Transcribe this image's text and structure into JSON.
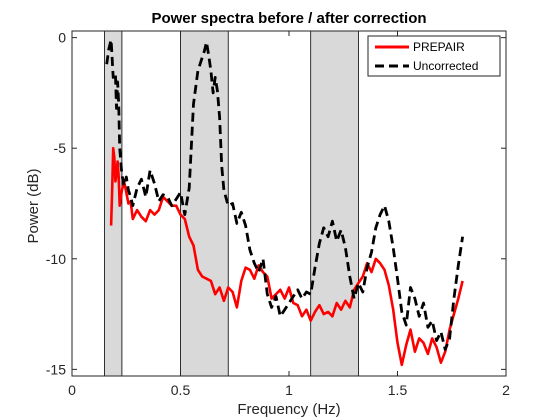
{
  "chart_data": {
    "type": "line",
    "title": "Power spectra before / after correction",
    "xlabel": "Frequency (Hz)",
    "ylabel": "Power (dB)",
    "xlim": [
      0,
      2
    ],
    "ylim": [
      -15.3,
      0.3
    ],
    "xticks": [
      0,
      0.5,
      1,
      1.5,
      2
    ],
    "xtick_labels": [
      "0",
      "0.5",
      "1",
      "1.5",
      "2"
    ],
    "yticks": [
      0,
      -5,
      -10,
      -15
    ],
    "ytick_labels": [
      "0",
      "-5",
      "-10",
      "-15"
    ],
    "grid": false,
    "legend_position": "top-right",
    "shaded_bands": [
      [
        0.15,
        0.23
      ],
      [
        0.5,
        0.72
      ],
      [
        1.1,
        1.32
      ]
    ],
    "band_color": "#d9d9d9",
    "series": [
      {
        "name": "PREPAIR",
        "color": "#ff0000",
        "style": "solid",
        "x": [
          0.18,
          0.185,
          0.19,
          0.195,
          0.2,
          0.205,
          0.21,
          0.215,
          0.22,
          0.23,
          0.24,
          0.25,
          0.26,
          0.27,
          0.28,
          0.3,
          0.32,
          0.34,
          0.36,
          0.38,
          0.4,
          0.42,
          0.44,
          0.46,
          0.48,
          0.5,
          0.52,
          0.54,
          0.56,
          0.58,
          0.6,
          0.62,
          0.64,
          0.66,
          0.68,
          0.7,
          0.72,
          0.74,
          0.76,
          0.78,
          0.8,
          0.82,
          0.84,
          0.86,
          0.88,
          0.9,
          0.92,
          0.94,
          0.96,
          0.98,
          1.0,
          1.02,
          1.04,
          1.06,
          1.08,
          1.1,
          1.12,
          1.14,
          1.16,
          1.18,
          1.2,
          1.22,
          1.24,
          1.26,
          1.28,
          1.3,
          1.32,
          1.34,
          1.36,
          1.38,
          1.4,
          1.42,
          1.44,
          1.46,
          1.48,
          1.5,
          1.52,
          1.54,
          1.56,
          1.58,
          1.6,
          1.62,
          1.64,
          1.66,
          1.68,
          1.7,
          1.72,
          1.74,
          1.76,
          1.78,
          1.8
        ],
        "values": [
          -8.5,
          -7.0,
          -5.0,
          -5.4,
          -6.5,
          -6.2,
          -5.6,
          -6.3,
          -7.6,
          -6.9,
          -6.5,
          -7.0,
          -7.5,
          -7.4,
          -8.2,
          -7.8,
          -8.1,
          -8.3,
          -7.8,
          -8.0,
          -7.8,
          -7.2,
          -7.4,
          -7.6,
          -7.6,
          -8.0,
          -8.2,
          -9.0,
          -9.4,
          -10.5,
          -10.8,
          -10.9,
          -11.0,
          -11.6,
          -11.3,
          -11.9,
          -11.3,
          -11.5,
          -12.2,
          -11.0,
          -10.4,
          -10.5,
          -10.9,
          -10.3,
          -10.6,
          -10.8,
          -11.8,
          -11.6,
          -11.4,
          -11.8,
          -11.3,
          -12.0,
          -12.1,
          -12.6,
          -12.3,
          -12.8,
          -12.4,
          -12.1,
          -12.5,
          -12.4,
          -12.6,
          -12.0,
          -12.3,
          -11.9,
          -12.2,
          -11.4,
          -11.1,
          -10.8,
          -10.2,
          -10.6,
          -10.0,
          -10.2,
          -10.5,
          -11.2,
          -12.3,
          -13.8,
          -14.8,
          -13.9,
          -13.2,
          -14.2,
          -13.6,
          -13.8,
          -14.3,
          -13.6,
          -14.0,
          -14.7,
          -14.2,
          -13.2,
          -12.5,
          -11.8,
          -11.0
        ]
      },
      {
        "name": "Uncorrected",
        "color": "#000000",
        "style": "dashed",
        "x": [
          0.16,
          0.17,
          0.18,
          0.19,
          0.2,
          0.205,
          0.21,
          0.215,
          0.22,
          0.23,
          0.24,
          0.25,
          0.26,
          0.27,
          0.28,
          0.3,
          0.32,
          0.34,
          0.36,
          0.38,
          0.4,
          0.42,
          0.44,
          0.46,
          0.48,
          0.5,
          0.52,
          0.54,
          0.56,
          0.58,
          0.6,
          0.61,
          0.62,
          0.63,
          0.64,
          0.65,
          0.66,
          0.67,
          0.68,
          0.69,
          0.7,
          0.72,
          0.74,
          0.76,
          0.78,
          0.8,
          0.82,
          0.84,
          0.86,
          0.88,
          0.9,
          0.92,
          0.94,
          0.96,
          0.98,
          1.0,
          1.02,
          1.04,
          1.06,
          1.08,
          1.1,
          1.12,
          1.14,
          1.16,
          1.18,
          1.2,
          1.22,
          1.24,
          1.26,
          1.28,
          1.3,
          1.32,
          1.34,
          1.36,
          1.38,
          1.4,
          1.42,
          1.44,
          1.46,
          1.48,
          1.5,
          1.52,
          1.54,
          1.56,
          1.58,
          1.6,
          1.62,
          1.64,
          1.66,
          1.68,
          1.7,
          1.72,
          1.74,
          1.76,
          1.78,
          1.8
        ],
        "values": [
          -1.2,
          -0.5,
          -0.1,
          -1.8,
          -1.6,
          -3.2,
          -2.0,
          -3.0,
          -5.0,
          -6.2,
          -6.7,
          -6.3,
          -6.9,
          -7.2,
          -7.6,
          -6.8,
          -6.4,
          -7.2,
          -6.0,
          -6.6,
          -7.4,
          -7.1,
          -7.2,
          -7.6,
          -7.3,
          -7.0,
          -8.0,
          -6.8,
          -3.0,
          -1.5,
          -0.9,
          -0.6,
          -0.2,
          -0.8,
          -1.5,
          -2.5,
          -1.8,
          -2.4,
          -3.6,
          -5.8,
          -6.9,
          -7.6,
          -7.5,
          -8.4,
          -7.9,
          -8.5,
          -9.6,
          -10.2,
          -10.6,
          -10.0,
          -11.6,
          -12.2,
          -11.7,
          -12.6,
          -12.3,
          -12.0,
          -11.7,
          -11.4,
          -11.8,
          -11.5,
          -11.6,
          -10.4,
          -9.3,
          -8.6,
          -9.0,
          -8.3,
          -9.2,
          -8.7,
          -9.5,
          -10.8,
          -11.8,
          -11.1,
          -11.5,
          -10.4,
          -9.7,
          -8.6,
          -8.0,
          -7.6,
          -8.3,
          -9.5,
          -10.9,
          -12.4,
          -13.0,
          -11.3,
          -11.8,
          -12.6,
          -12.0,
          -13.1,
          -12.8,
          -13.7,
          -13.3,
          -14.1,
          -13.6,
          -11.8,
          -10.3,
          -9.0
        ]
      }
    ]
  }
}
